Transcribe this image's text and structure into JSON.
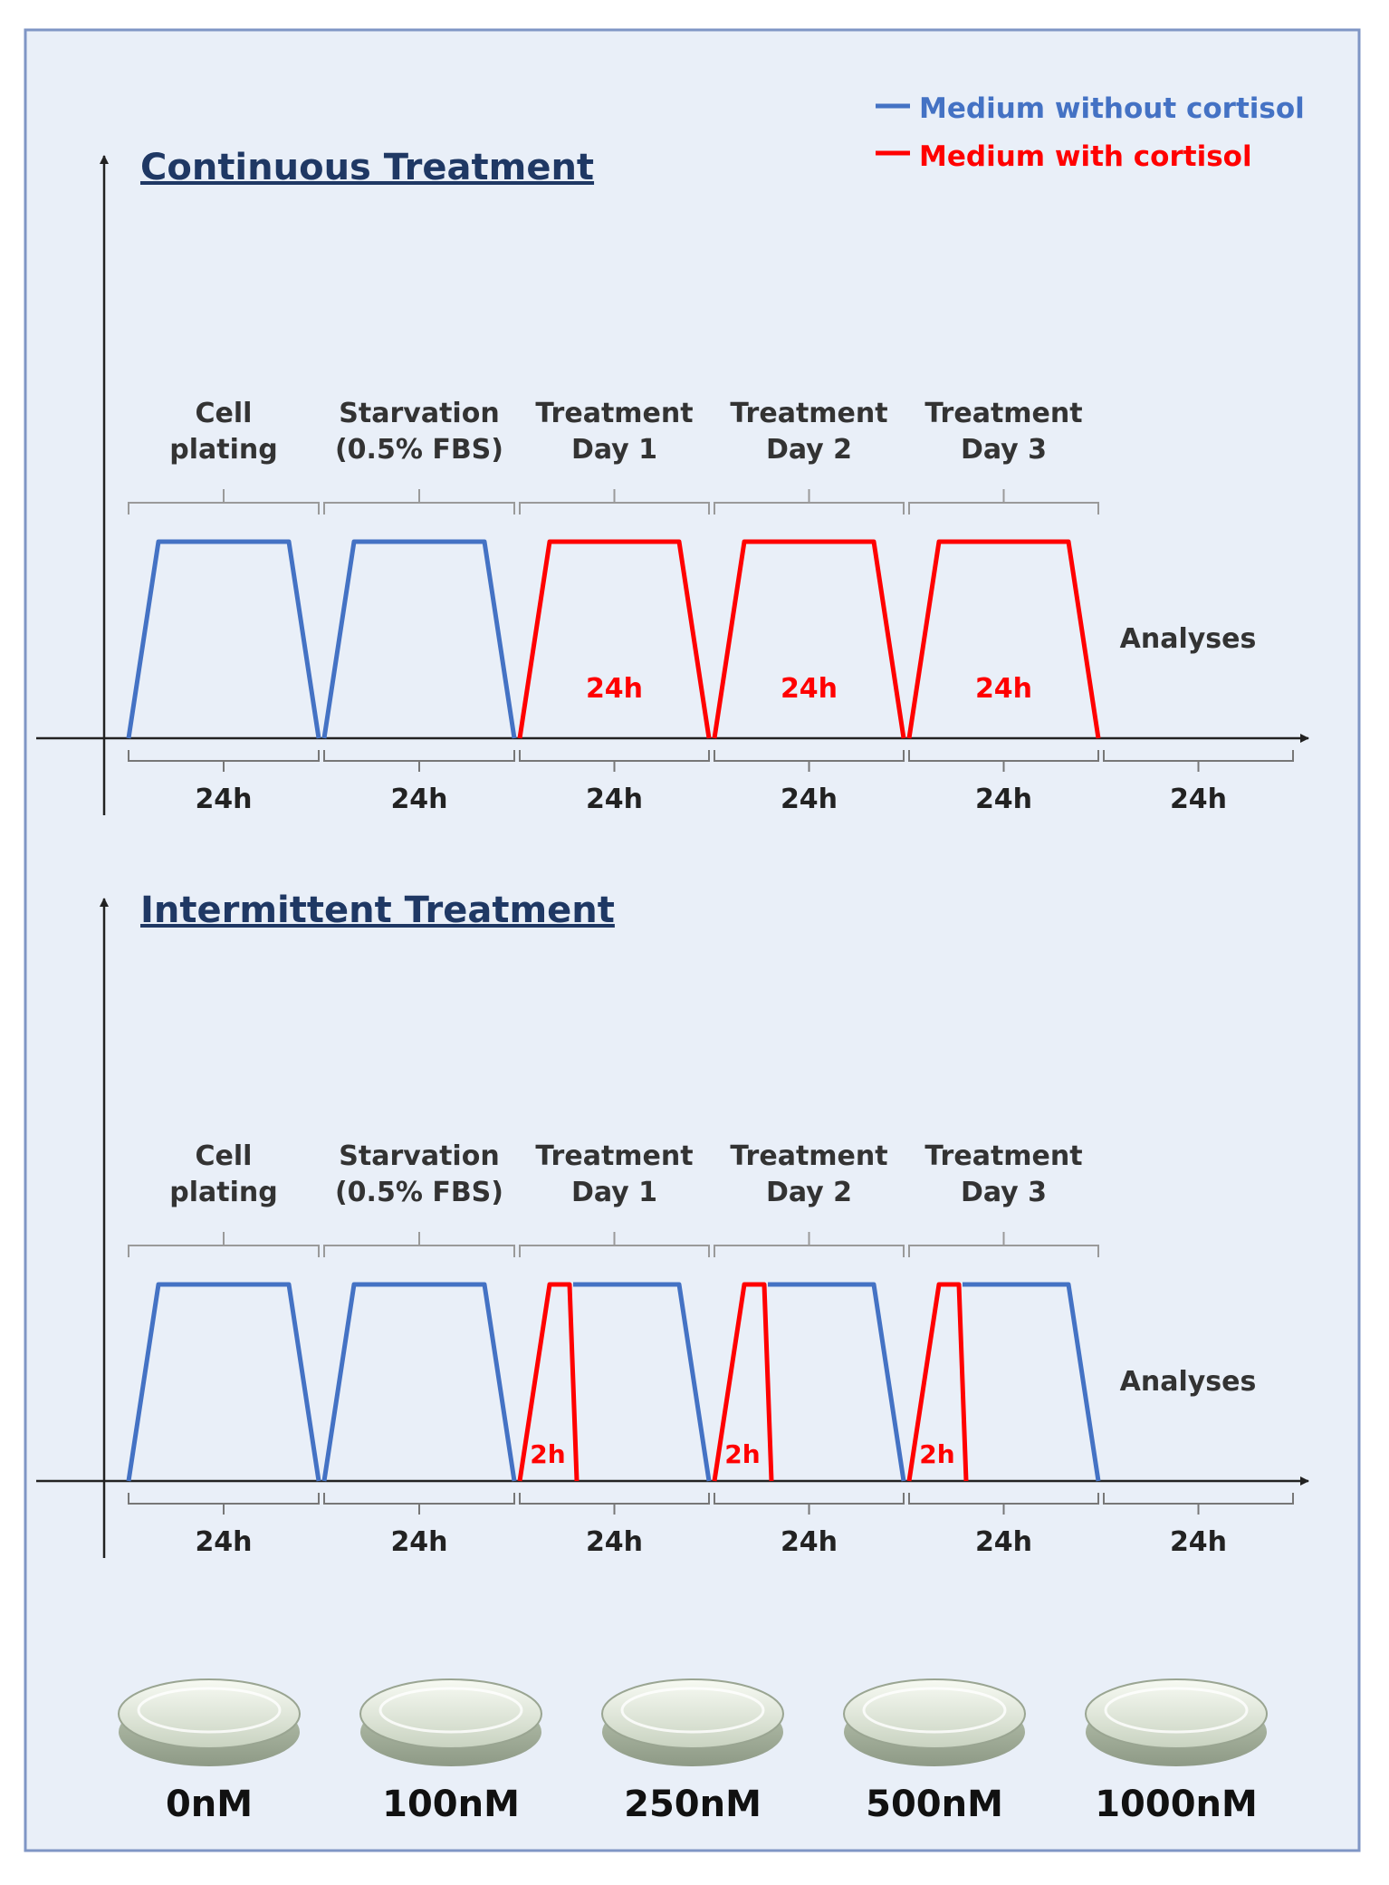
{
  "legend": {
    "without_label": "Medium without cortisol",
    "with_label": "Medium with cortisol",
    "colors": {
      "without": "#4472C4",
      "with": "#FF0000"
    }
  },
  "panels": [
    {
      "title": "Continuous Treatment",
      "phases": [
        {
          "line1": "Cell",
          "line2": "plating"
        },
        {
          "line1": "Starvation",
          "line2": "(0.5% FBS)"
        },
        {
          "line1": "Treatment",
          "line2": "Day 1"
        },
        {
          "line1": "Treatment",
          "line2": "Day 2"
        },
        {
          "line1": "Treatment",
          "line2": "Day 3"
        }
      ],
      "pulse_labels": [
        "24h",
        "24h",
        "24h"
      ],
      "analyses_label": "Analyses",
      "durations": [
        "24h",
        "24h",
        "24h",
        "24h",
        "24h",
        "24h"
      ]
    },
    {
      "title": "Intermittent Treatment",
      "phases": [
        {
          "line1": "Cell",
          "line2": "plating"
        },
        {
          "line1": "Starvation",
          "line2": "(0.5% FBS)"
        },
        {
          "line1": "Treatment",
          "line2": "Day 1"
        },
        {
          "line1": "Treatment",
          "line2": "Day 2"
        },
        {
          "line1": "Treatment",
          "line2": "Day 3"
        }
      ],
      "pulse_labels": [
        "2h",
        "2h",
        "2h"
      ],
      "analyses_label": "Analyses",
      "durations": [
        "24h",
        "24h",
        "24h",
        "24h",
        "24h",
        "24h"
      ]
    }
  ],
  "dishes": [
    {
      "label": "0nM"
    },
    {
      "label": "100nM"
    },
    {
      "label": "250nM"
    },
    {
      "label": "500nM"
    },
    {
      "label": "1000nM"
    }
  ]
}
